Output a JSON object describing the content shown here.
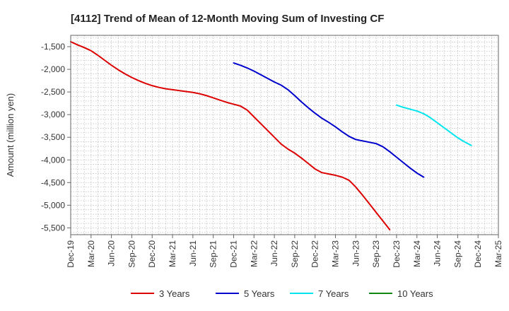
{
  "chart_data": {
    "type": "line",
    "title": "[4112]  Trend of Mean of 12-Month Moving Sum of Investing CF",
    "xlabel": "",
    "ylabel": "Amount (million yen)",
    "ylim": [
      -5650,
      -1250
    ],
    "yticks": [
      -1500,
      -2000,
      -2500,
      -3000,
      -3500,
      -4000,
      -4500,
      -5000,
      -5500
    ],
    "ytick_labels": [
      "-1,500",
      "-2,000",
      "-2,500",
      "-3,000",
      "-3,500",
      "-4,000",
      "-4,500",
      "-5,000",
      "-5,500"
    ],
    "x_start": "Dec-19",
    "x_count": 64,
    "xticks": [
      "Dec-19",
      "Mar-20",
      "Jun-20",
      "Sep-20",
      "Dec-20",
      "Mar-21",
      "Jun-21",
      "Sep-21",
      "Dec-21",
      "Mar-22",
      "Jun-22",
      "Sep-22",
      "Dec-22",
      "Mar-23",
      "Jun-23",
      "Sep-23",
      "Dec-23",
      "Mar-24",
      "Jun-24",
      "Sep-24",
      "Dec-24",
      "Mar-25"
    ],
    "grid": true,
    "legend_position": "bottom",
    "series": [
      {
        "name": "3 Years",
        "color": "#dd0000",
        "start_index": 0,
        "values": [
          -1390,
          -1460,
          -1520,
          -1590,
          -1690,
          -1800,
          -1910,
          -2010,
          -2100,
          -2180,
          -2250,
          -2310,
          -2360,
          -2400,
          -2430,
          -2450,
          -2470,
          -2490,
          -2510,
          -2540,
          -2580,
          -2630,
          -2680,
          -2730,
          -2770,
          -2810,
          -2900,
          -3050,
          -3200,
          -3350,
          -3500,
          -3650,
          -3760,
          -3850,
          -3960,
          -4080,
          -4200,
          -4280,
          -4310,
          -4340,
          -4380,
          -4450,
          -4600,
          -4780,
          -4970,
          -5160,
          -5350,
          -5540
        ]
      },
      {
        "name": "5 Years",
        "color": "#0000cc",
        "start_index": 24,
        "values": [
          -1860,
          -1910,
          -1970,
          -2040,
          -2120,
          -2200,
          -2280,
          -2350,
          -2450,
          -2580,
          -2720,
          -2850,
          -2970,
          -3080,
          -3170,
          -3270,
          -3380,
          -3480,
          -3550,
          -3580,
          -3610,
          -3640,
          -3710,
          -3820,
          -3940,
          -4060,
          -4180,
          -4290,
          -4380
        ]
      },
      {
        "name": "7 Years",
        "color": "#00e5ee",
        "start_index": 48,
        "values": [
          -2790,
          -2840,
          -2880,
          -2920,
          -2980,
          -3070,
          -3180,
          -3290,
          -3400,
          -3510,
          -3600,
          -3680
        ]
      },
      {
        "name": "10 Years",
        "color": "#118811",
        "start_index": 0,
        "values": []
      }
    ]
  }
}
